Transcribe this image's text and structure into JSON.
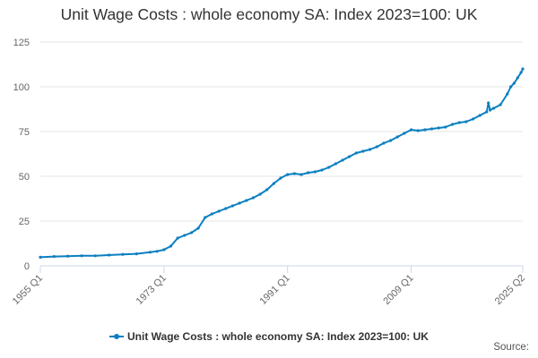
{
  "title": "Unit Wage Costs : whole economy SA: Index 2023=100: UK",
  "source_label": "Source:",
  "colors": {
    "series": "#0b7fc0",
    "grid": "#e6e6e6",
    "axis": "#ccd6eb"
  },
  "chart_data": {
    "type": "line",
    "title": "Unit Wage Costs : whole economy SA: Index 2023=100: UK",
    "xlabel": "",
    "ylabel": "",
    "ylim": [
      0,
      125
    ],
    "y_ticks": [
      0,
      25,
      50,
      75,
      100,
      125
    ],
    "x_range": [
      "1955 Q1",
      "2025 Q2"
    ],
    "x_ticks": [
      "1955 Q1",
      "1973 Q1",
      "1991 Q1",
      "2009 Q1",
      "2025 Q2"
    ],
    "grid": true,
    "legend_position": "bottom",
    "series": [
      {
        "name": "Unit Wage Costs : whole economy SA: Index 2023=100: UK",
        "points": [
          [
            "1955 Q1",
            4.8
          ],
          [
            "1957 Q1",
            5.2
          ],
          [
            "1959 Q1",
            5.4
          ],
          [
            "1961 Q1",
            5.6
          ],
          [
            "1963 Q1",
            5.6
          ],
          [
            "1965 Q1",
            6.0
          ],
          [
            "1967 Q1",
            6.4
          ],
          [
            "1969 Q1",
            6.7
          ],
          [
            "1971 Q1",
            7.6
          ],
          [
            "1972 Q1",
            8.1
          ],
          [
            "1973 Q1",
            9.0
          ],
          [
            "1974 Q1",
            11.0
          ],
          [
            "1975 Q1",
            15.5
          ],
          [
            "1976 Q1",
            17.0
          ],
          [
            "1977 Q1",
            18.5
          ],
          [
            "1978 Q1",
            21.0
          ],
          [
            "1979 Q1",
            27.0
          ],
          [
            "1980 Q1",
            29.0
          ],
          [
            "1981 Q1",
            30.5
          ],
          [
            "1982 Q1",
            32.0
          ],
          [
            "1983 Q1",
            33.5
          ],
          [
            "1984 Q1",
            35.0
          ],
          [
            "1985 Q1",
            36.5
          ],
          [
            "1986 Q1",
            38.0
          ],
          [
            "1987 Q1",
            40.0
          ],
          [
            "1988 Q1",
            42.5
          ],
          [
            "1989 Q1",
            46.0
          ],
          [
            "1990 Q1",
            49.0
          ],
          [
            "1991 Q1",
            51.0
          ],
          [
            "1992 Q1",
            51.5
          ],
          [
            "1993 Q1",
            51.0
          ],
          [
            "1994 Q1",
            52.0
          ],
          [
            "1995 Q1",
            52.5
          ],
          [
            "1996 Q1",
            53.5
          ],
          [
            "1997 Q1",
            55.0
          ],
          [
            "1998 Q1",
            57.0
          ],
          [
            "1999 Q1",
            59.0
          ],
          [
            "2000 Q1",
            61.0
          ],
          [
            "2001 Q1",
            63.0
          ],
          [
            "2002 Q1",
            64.0
          ],
          [
            "2003 Q1",
            65.0
          ],
          [
            "2004 Q1",
            66.5
          ],
          [
            "2005 Q1",
            68.5
          ],
          [
            "2006 Q1",
            70.0
          ],
          [
            "2007 Q1",
            72.0
          ],
          [
            "2008 Q1",
            74.0
          ],
          [
            "2009 Q1",
            76.0
          ],
          [
            "2010 Q1",
            75.5
          ],
          [
            "2011 Q1",
            76.0
          ],
          [
            "2012 Q1",
            76.5
          ],
          [
            "2013 Q1",
            77.0
          ],
          [
            "2014 Q1",
            77.5
          ],
          [
            "2015 Q1",
            79.0
          ],
          [
            "2016 Q1",
            80.0
          ],
          [
            "2017 Q1",
            80.5
          ],
          [
            "2018 Q1",
            82.0
          ],
          [
            "2019 Q1",
            84.0
          ],
          [
            "2020 Q1",
            86.0
          ],
          [
            "2020 Q2",
            91.0
          ],
          [
            "2020 Q3",
            87.0
          ],
          [
            "2021 Q1",
            88.0
          ],
          [
            "2022 Q1",
            90.0
          ],
          [
            "2023 Q1",
            96.0
          ],
          [
            "2023 Q3",
            100.0
          ],
          [
            "2024 Q1",
            102.0
          ],
          [
            "2024 Q3",
            105.0
          ],
          [
            "2025 Q1",
            108.0
          ],
          [
            "2025 Q2",
            110.0
          ]
        ]
      }
    ]
  }
}
